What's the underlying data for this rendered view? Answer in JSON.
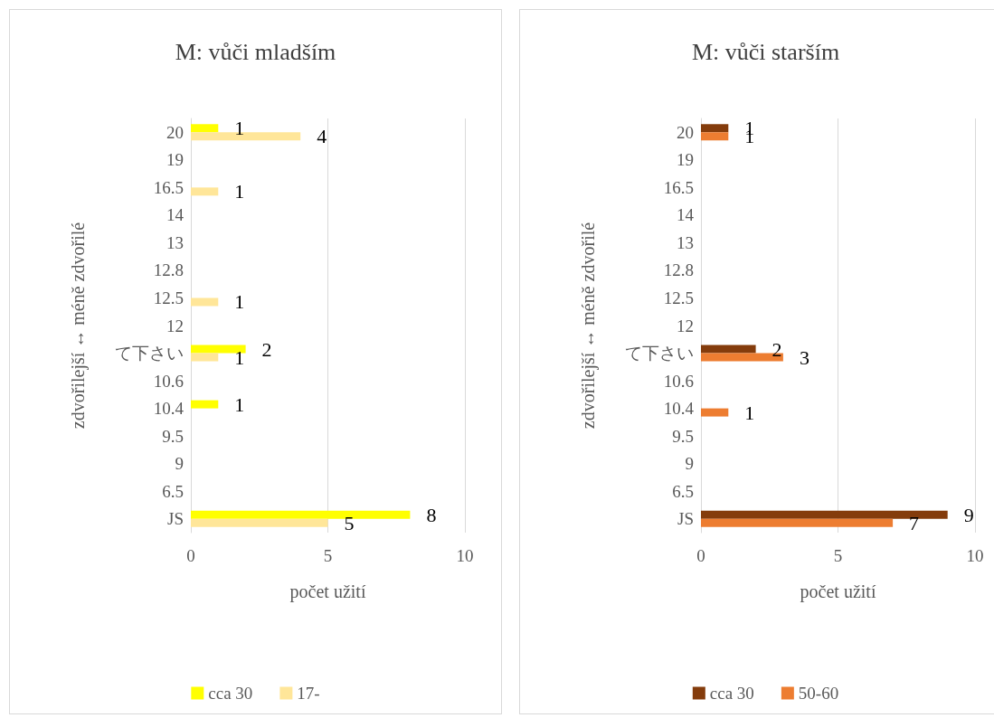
{
  "chart_data": [
    {
      "type": "bar",
      "orientation": "horizontal",
      "title": "M: vůči mladším",
      "xlabel": "počet užití",
      "ylabel": "zdvořilejší ↔ méně zdvořilé",
      "categories": [
        "20",
        "19",
        "16.5",
        "14",
        "13",
        "12.8",
        "12.5",
        "12",
        "て下さい",
        "10.6",
        "10.4",
        "9.5",
        "9",
        "6.5",
        "JS"
      ],
      "series": [
        {
          "name": "cca 30",
          "color": "#ffff00",
          "values": [
            1,
            null,
            null,
            null,
            null,
            null,
            null,
            null,
            2,
            null,
            1,
            null,
            null,
            null,
            8
          ]
        },
        {
          "name": "17-",
          "color": "#ffe699",
          "values": [
            4,
            null,
            1,
            null,
            null,
            null,
            1,
            null,
            1,
            null,
            null,
            null,
            null,
            null,
            5
          ]
        }
      ],
      "xlim": [
        0,
        10
      ],
      "xticks": [
        0,
        5,
        10
      ],
      "grid": "x",
      "legend": "bottom",
      "data_labels": true
    },
    {
      "type": "bar",
      "orientation": "horizontal",
      "title": "M: vůči starším",
      "xlabel": "počet užití",
      "ylabel": "zdvořilejší ↔ méně zdvořilé",
      "categories": [
        "20",
        "19",
        "16.5",
        "14",
        "13",
        "12.8",
        "12.5",
        "12",
        "て下さい",
        "10.6",
        "10.4",
        "9.5",
        "9",
        "6.5",
        "JS"
      ],
      "series": [
        {
          "name": "cca 30",
          "color": "#843c0c",
          "values": [
            1,
            null,
            null,
            null,
            null,
            null,
            null,
            null,
            2,
            null,
            null,
            null,
            null,
            null,
            9
          ]
        },
        {
          "name": "50-60",
          "color": "#ed7d31",
          "values": [
            1,
            null,
            null,
            null,
            null,
            null,
            null,
            null,
            3,
            null,
            1,
            null,
            null,
            null,
            7
          ]
        }
      ],
      "xlim": [
        0,
        10
      ],
      "xticks": [
        0,
        5,
        10
      ],
      "grid": "x",
      "legend": "bottom",
      "data_labels": true
    }
  ]
}
